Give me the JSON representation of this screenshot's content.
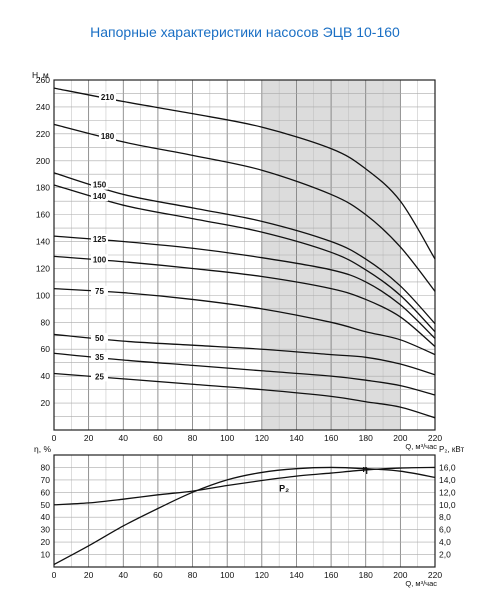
{
  "page": {
    "title": "Напорные характеристики насосов ЭЦВ 10-160"
  },
  "chart_data": [
    {
      "type": "line",
      "title": "Напорные характеристики насосов ЭЦВ 10-160",
      "xlabel": "Q, м³/час",
      "ylabel": "H, м",
      "xlim": [
        0,
        220
      ],
      "ylim": [
        0,
        260
      ],
      "x_ticks": [
        0,
        20,
        40,
        60,
        80,
        100,
        120,
        140,
        160,
        180,
        200,
        220
      ],
      "y_ticks": [
        20,
        40,
        60,
        80,
        100,
        120,
        140,
        160,
        180,
        200,
        220,
        240,
        260
      ],
      "grid": true,
      "highlight_region": {
        "x_from": 120,
        "x_to": 200,
        "color": "#dcdcdc"
      },
      "series": [
        {
          "name": "210",
          "x": [
            0,
            40,
            80,
            120,
            160,
            180,
            200,
            220
          ],
          "y": [
            254,
            244,
            235,
            225,
            209,
            194,
            170,
            127
          ]
        },
        {
          "name": "180",
          "x": [
            0,
            40,
            80,
            120,
            160,
            180,
            200,
            220
          ],
          "y": [
            227,
            214,
            204,
            193,
            175,
            160,
            136,
            103
          ]
        },
        {
          "name": "150",
          "x": [
            0,
            40,
            80,
            120,
            160,
            180,
            200,
            220
          ],
          "y": [
            191,
            175,
            165,
            155,
            140,
            127,
            107,
            79
          ]
        },
        {
          "name": "140",
          "x": [
            0,
            40,
            80,
            120,
            160,
            180,
            200,
            220
          ],
          "y": [
            182,
            167,
            157,
            147,
            132,
            119,
            100,
            73
          ]
        },
        {
          "name": "125",
          "x": [
            0,
            40,
            80,
            120,
            160,
            180,
            200,
            220
          ],
          "y": [
            144,
            140,
            135,
            128,
            119,
            110,
            93,
            68
          ]
        },
        {
          "name": "100",
          "x": [
            0,
            40,
            80,
            120,
            160,
            180,
            200,
            220
          ],
          "y": [
            129,
            125,
            120,
            114,
            105,
            97,
            84,
            62
          ]
        },
        {
          "name": "75",
          "x": [
            0,
            40,
            80,
            120,
            160,
            180,
            200,
            220
          ],
          "y": [
            105,
            102,
            97,
            90,
            80,
            73,
            67,
            56
          ]
        },
        {
          "name": "50",
          "x": [
            0,
            40,
            80,
            120,
            160,
            180,
            200,
            220
          ],
          "y": [
            71,
            66,
            63,
            60,
            56,
            54,
            49,
            41
          ]
        },
        {
          "name": "35",
          "x": [
            0,
            40,
            80,
            120,
            160,
            180,
            200,
            220
          ],
          "y": [
            57,
            52,
            48,
            44,
            40,
            37,
            33,
            26
          ]
        },
        {
          "name": "25",
          "x": [
            0,
            40,
            80,
            120,
            160,
            180,
            200,
            220
          ],
          "y": [
            42,
            38,
            34,
            30,
            25,
            21,
            17,
            9
          ]
        }
      ]
    },
    {
      "type": "line",
      "xlabel": "Q, м³/час",
      "ylabel": "η, %",
      "y2label": "P₂, кВт",
      "xlim": [
        0,
        220
      ],
      "ylim": [
        0,
        90
      ],
      "y2lim": [
        0,
        18
      ],
      "x_ticks": [
        0,
        20,
        40,
        60,
        80,
        100,
        120,
        140,
        160,
        180,
        200,
        220
      ],
      "y_ticks": [
        0,
        10,
        20,
        30,
        40,
        50,
        60,
        70,
        80
      ],
      "y2_ticks": [
        "2,0",
        "4,0",
        "6,0",
        "8,0",
        "10,0",
        "12,0",
        "14,0",
        "16,0"
      ],
      "grid": true,
      "series": [
        {
          "name": "η",
          "axis": "left",
          "x": [
            0,
            20,
            40,
            60,
            80,
            100,
            120,
            140,
            160,
            180,
            200,
            220
          ],
          "y": [
            2,
            17,
            33,
            47,
            60,
            70,
            76,
            79,
            80,
            79,
            77,
            72
          ]
        },
        {
          "name": "P₂",
          "axis": "right",
          "x": [
            0,
            20,
            40,
            60,
            80,
            100,
            120,
            140,
            160,
            180,
            200,
            220
          ],
          "y": [
            10,
            10.3,
            10.9,
            11.6,
            12.2,
            13.1,
            13.9,
            14.6,
            15.1,
            15.6,
            15.9,
            16.0
          ]
        }
      ]
    }
  ]
}
